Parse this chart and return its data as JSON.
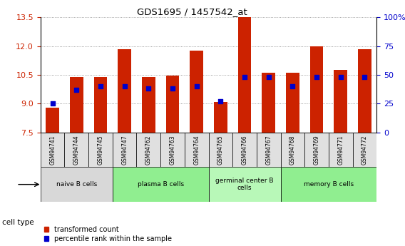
{
  "title": "GDS1695 / 1457542_at",
  "samples": [
    "GSM94741",
    "GSM94744",
    "GSM94745",
    "GSM94747",
    "GSM94762",
    "GSM94763",
    "GSM94764",
    "GSM94765",
    "GSM94766",
    "GSM94767",
    "GSM94768",
    "GSM94769",
    "GSM94771",
    "GSM94772"
  ],
  "transformed_count": [
    8.8,
    10.4,
    10.4,
    11.85,
    10.4,
    10.45,
    11.75,
    9.1,
    13.5,
    10.6,
    10.6,
    12.0,
    10.75,
    11.85
  ],
  "percentile_rank": [
    25,
    37,
    40,
    40,
    38,
    38,
    40,
    27,
    48,
    48,
    40,
    48,
    48,
    48
  ],
  "ylim_left": [
    7.5,
    13.5
  ],
  "ylim_right": [
    0,
    100
  ],
  "yticks_left": [
    7.5,
    9.0,
    10.5,
    12.0,
    13.5
  ],
  "yticks_right": [
    0,
    25,
    50,
    75,
    100
  ],
  "ytick_labels_right": [
    "0",
    "25",
    "50",
    "75",
    "100%"
  ],
  "bar_color": "#CC2200",
  "percentile_color": "#0000CC",
  "bar_bottom": 7.5,
  "cell_groups": [
    {
      "label": "naive B cells",
      "start": 0,
      "end": 2,
      "color": "#d8d8d8"
    },
    {
      "label": "plasma B cells",
      "start": 3,
      "end": 6,
      "color": "#90ee90"
    },
    {
      "label": "germinal center B\ncells",
      "start": 7,
      "end": 9,
      "color": "#b8f8b8"
    },
    {
      "label": "memory B cells",
      "start": 10,
      "end": 13,
      "color": "#90ee90"
    }
  ],
  "legend_bar_label": "transformed count",
  "legend_dot_label": "percentile rank within the sample",
  "cell_type_label": "cell type"
}
